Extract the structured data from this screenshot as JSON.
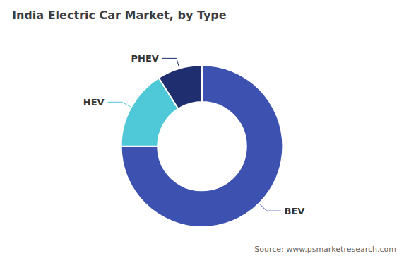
{
  "chart_data": {
    "type": "pie",
    "title": "India Electric Car Market, by Type",
    "categories": [
      "BEV",
      "HEV",
      "PHEV"
    ],
    "values": [
      75,
      16,
      9
    ],
    "colors": [
      "#3d52b0",
      "#4fc8d8",
      "#1e2e6e"
    ],
    "annotations": [
      "Source: www.psmarketresearch.com"
    ]
  }
}
